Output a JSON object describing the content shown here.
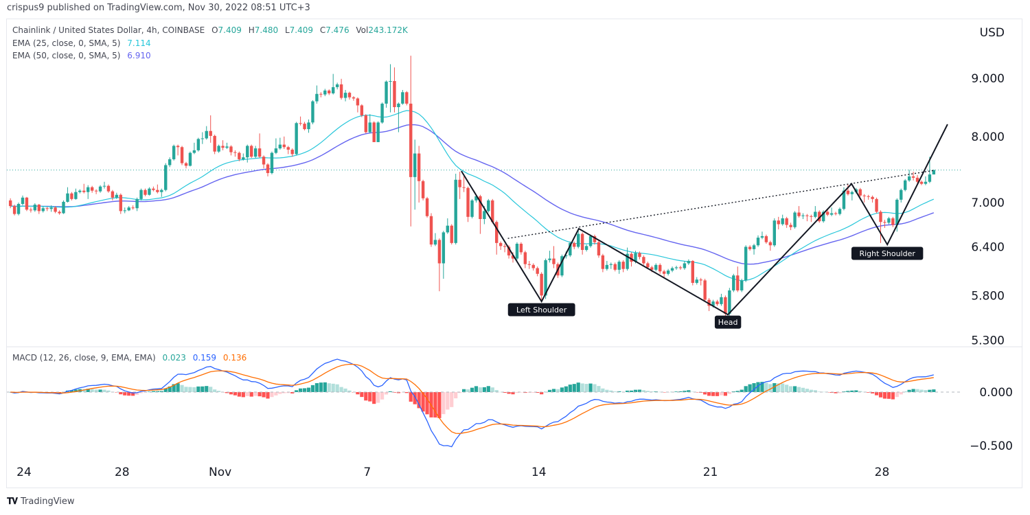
{
  "header": {
    "published": "crispus9 published on TradingView.com, Nov 30, 2022 08:51 UTC+3",
    "symbol": "Chainlink / United States Dollar, 4h, COINBASE",
    "o_label": "O",
    "o": "7.409",
    "h_label": "H",
    "h": "7.480",
    "l_label": "L",
    "l": "7.409",
    "c_label": "C",
    "c": "7.476",
    "vol_label": "Vol",
    "vol": "243.172K",
    "ema1_label": "EMA (25, close, 0, SMA, 5)",
    "ema1_value": "7.114",
    "ema2_label": "EMA (50, close, 0, SMA, 5)",
    "ema2_value": "6.910",
    "macd_label": "MACD (12, 26, close, 9, EMA, EMA)",
    "macd_hist": "0.023",
    "macd_line": "0.159",
    "macd_signal": "0.136"
  },
  "footer": {
    "logo_text": "TradingView",
    "logo_mark": "TV"
  },
  "colors": {
    "up": "#26a69a",
    "down": "#ef5350",
    "ema25": "#26c6da",
    "ema50": "#6464f0",
    "macd": "#2962ff",
    "signal": "#ff6d00",
    "hist_up_strong": "#26a69a",
    "hist_up_weak": "#b2dfdb",
    "hist_down_strong": "#ff5252",
    "hist_down_weak": "#ffcdd2",
    "last_price": "#26a69a"
  },
  "chart_data": {
    "type": "candlestick",
    "currency": "USD",
    "price_scale": "log",
    "price_ticks": [
      "9.000",
      "8.000",
      "7.000",
      "6.400",
      "5.800",
      "5.300"
    ],
    "macd_ticks": [
      "0.000",
      "-0.500"
    ],
    "time_ticks": [
      {
        "label": "24",
        "date": "2022-10-24"
      },
      {
        "label": "28",
        "date": "2022-10-28"
      },
      {
        "label": "Nov",
        "date": "2022-11-01"
      },
      {
        "label": "7",
        "date": "2022-11-07"
      },
      {
        "label": "14",
        "date": "2022-11-14"
      },
      {
        "label": "21",
        "date": "2022-11-21"
      },
      {
        "label": "28",
        "date": "2022-11-28"
      }
    ],
    "first_candle": "2022-10-23T12:00",
    "interval_hours": 4,
    "last_price": 7.476,
    "ohlc": [
      [
        7.03,
        7.06,
        6.92,
        6.95
      ],
      [
        6.95,
        6.97,
        6.82,
        6.84
      ],
      [
        6.84,
        7.0,
        6.82,
        6.98
      ],
      [
        6.98,
        7.1,
        6.96,
        7.07
      ],
      [
        7.07,
        7.08,
        6.88,
        6.9
      ],
      [
        6.9,
        6.93,
        6.86,
        6.89
      ],
      [
        6.89,
        6.99,
        6.87,
        6.97
      ],
      [
        6.97,
        6.98,
        6.84,
        6.88
      ],
      [
        6.88,
        6.95,
        6.86,
        6.92
      ],
      [
        6.92,
        6.94,
        6.88,
        6.91
      ],
      [
        6.91,
        6.96,
        6.87,
        6.93
      ],
      [
        6.93,
        6.95,
        6.85,
        6.87
      ],
      [
        6.87,
        6.89,
        6.83,
        6.85
      ],
      [
        6.85,
        7.03,
        6.84,
        7.01
      ],
      [
        7.01,
        7.22,
        7.0,
        7.13
      ],
      [
        7.13,
        7.15,
        7.03,
        7.05
      ],
      [
        7.05,
        7.2,
        7.04,
        7.15
      ],
      [
        7.15,
        7.19,
        7.13,
        7.17
      ],
      [
        7.17,
        7.27,
        7.13,
        7.15
      ],
      [
        7.15,
        7.25,
        7.05,
        7.22
      ],
      [
        7.22,
        7.24,
        7.14,
        7.17
      ],
      [
        7.17,
        7.19,
        7.12,
        7.16
      ],
      [
        7.16,
        7.25,
        7.14,
        7.23
      ],
      [
        7.23,
        7.3,
        7.2,
        7.24
      ],
      [
        7.24,
        7.26,
        7.14,
        7.16
      ],
      [
        7.16,
        7.18,
        7.03,
        7.07
      ],
      [
        7.07,
        7.14,
        7.05,
        7.11
      ],
      [
        7.11,
        7.13,
        6.84,
        6.88
      ],
      [
        6.88,
        6.93,
        6.85,
        6.89
      ],
      [
        6.89,
        6.95,
        6.88,
        6.93
      ],
      [
        6.93,
        6.96,
        6.9,
        6.92
      ],
      [
        6.92,
        7.07,
        6.88,
        7.05
      ],
      [
        7.05,
        7.2,
        7.03,
        7.18
      ],
      [
        7.18,
        7.2,
        7.09,
        7.11
      ],
      [
        7.11,
        7.22,
        7.1,
        7.2
      ],
      [
        7.2,
        7.23,
        7.16,
        7.18
      ],
      [
        7.18,
        7.26,
        7.13,
        7.15
      ],
      [
        7.15,
        7.2,
        7.08,
        7.18
      ],
      [
        7.18,
        7.58,
        7.16,
        7.55
      ],
      [
        7.55,
        7.67,
        7.52,
        7.64
      ],
      [
        7.64,
        7.87,
        7.62,
        7.85
      ],
      [
        7.85,
        7.87,
        7.7,
        7.83
      ],
      [
        7.83,
        7.85,
        7.55,
        7.58
      ],
      [
        7.58,
        7.6,
        7.5,
        7.54
      ],
      [
        7.54,
        7.76,
        7.53,
        7.74
      ],
      [
        7.74,
        7.9,
        7.72,
        7.78
      ],
      [
        7.78,
        7.98,
        7.76,
        7.96
      ],
      [
        7.96,
        8.07,
        7.88,
        7.97
      ],
      [
        7.97,
        8.17,
        7.95,
        8.09
      ],
      [
        8.09,
        8.35,
        7.9,
        8.01
      ],
      [
        8.01,
        8.03,
        7.72,
        7.76
      ],
      [
        7.76,
        7.87,
        7.74,
        7.85
      ],
      [
        7.85,
        7.94,
        7.78,
        7.82
      ],
      [
        7.82,
        7.9,
        7.8,
        7.84
      ],
      [
        7.84,
        7.86,
        7.7,
        7.75
      ],
      [
        7.75,
        7.78,
        7.68,
        7.74
      ],
      [
        7.74,
        7.76,
        7.61,
        7.64
      ],
      [
        7.64,
        7.73,
        7.62,
        7.67
      ],
      [
        7.67,
        7.87,
        7.59,
        7.85
      ],
      [
        7.85,
        7.87,
        7.66,
        7.68
      ],
      [
        7.68,
        7.85,
        7.66,
        7.81
      ],
      [
        7.81,
        8.05,
        7.66,
        7.68
      ],
      [
        7.68,
        7.7,
        7.5,
        7.56
      ],
      [
        7.56,
        7.58,
        7.38,
        7.43
      ],
      [
        7.43,
        7.76,
        7.41,
        7.74
      ],
      [
        7.74,
        7.97,
        7.72,
        7.81
      ],
      [
        7.81,
        7.98,
        7.79,
        7.87
      ],
      [
        7.87,
        8.0,
        7.8,
        7.83
      ],
      [
        7.83,
        7.85,
        7.72,
        7.79
      ],
      [
        7.79,
        7.81,
        7.68,
        7.72
      ],
      [
        7.72,
        8.24,
        7.7,
        8.22
      ],
      [
        8.22,
        8.33,
        8.18,
        8.21
      ],
      [
        8.21,
        8.24,
        8.1,
        8.12
      ],
      [
        8.12,
        8.28,
        8.06,
        8.23
      ],
      [
        8.23,
        8.61,
        8.2,
        8.59
      ],
      [
        8.59,
        8.87,
        8.55,
        8.72
      ],
      [
        8.72,
        8.75,
        8.66,
        8.71
      ],
      [
        8.71,
        8.81,
        8.68,
        8.78
      ],
      [
        8.78,
        8.8,
        8.7,
        8.73
      ],
      [
        8.73,
        9.08,
        8.71,
        8.84
      ],
      [
        8.84,
        8.92,
        8.8,
        8.89
      ],
      [
        8.89,
        8.99,
        8.62,
        8.65
      ],
      [
        8.65,
        8.79,
        8.59,
        8.74
      ],
      [
        8.74,
        8.76,
        8.62,
        8.66
      ],
      [
        8.66,
        8.68,
        8.6,
        8.64
      ],
      [
        8.64,
        8.66,
        8.4,
        8.52
      ],
      [
        8.52,
        8.54,
        8.32,
        8.35
      ],
      [
        8.35,
        8.37,
        8.05,
        8.07
      ],
      [
        8.07,
        8.37,
        8.05,
        8.23
      ],
      [
        8.23,
        8.25,
        7.91,
        7.91
      ],
      [
        7.91,
        8.25,
        7.91,
        8.23
      ],
      [
        8.23,
        8.57,
        8.21,
        8.55
      ],
      [
        8.55,
        8.96,
        8.48,
        8.94
      ],
      [
        8.94,
        9.26,
        8.4,
        8.95
      ],
      [
        8.95,
        9.2,
        8.4,
        8.49
      ],
      [
        8.49,
        8.57,
        8.07,
        8.55
      ],
      [
        8.55,
        8.79,
        8.53,
        8.75
      ],
      [
        8.75,
        8.77,
        8.52,
        8.55
      ],
      [
        8.55,
        9.42,
        6.67,
        7.37
      ],
      [
        7.37,
        7.95,
        6.9,
        7.73
      ],
      [
        7.73,
        7.85,
        7.0,
        7.31
      ],
      [
        7.31,
        7.33,
        7.03,
        7.06
      ],
      [
        7.06,
        7.08,
        6.79,
        6.81
      ],
      [
        6.81,
        6.85,
        6.4,
        6.43
      ],
      [
        6.43,
        6.58,
        6.41,
        6.49
      ],
      [
        6.49,
        6.51,
        5.85,
        6.19
      ],
      [
        6.19,
        6.61,
        6.0,
        6.59
      ],
      [
        6.59,
        6.78,
        6.57,
        6.68
      ],
      [
        6.68,
        6.7,
        6.43,
        6.45
      ],
      [
        6.45,
        7.42,
        6.43,
        7.33
      ],
      [
        7.33,
        7.45,
        7.05,
        7.22
      ],
      [
        7.22,
        7.38,
        7.15,
        7.21
      ],
      [
        7.21,
        7.23,
        6.73,
        6.8
      ],
      [
        6.8,
        7.05,
        6.78,
        7.03
      ],
      [
        7.03,
        7.11,
        7.0,
        7.09
      ],
      [
        7.09,
        7.11,
        6.57,
        6.77
      ],
      [
        6.77,
        6.95,
        6.7,
        6.88
      ],
      [
        6.88,
        7.05,
        6.86,
        7.03
      ],
      [
        7.03,
        7.05,
        6.71,
        6.73
      ],
      [
        6.73,
        6.75,
        6.3,
        6.45
      ],
      [
        6.45,
        6.47,
        6.36,
        6.41
      ],
      [
        6.41,
        6.44,
        6.33,
        6.4
      ],
      [
        6.4,
        6.42,
        6.25,
        6.29
      ],
      [
        6.29,
        6.33,
        6.2,
        6.25
      ],
      [
        6.25,
        6.46,
        6.23,
        6.44
      ],
      [
        6.44,
        6.46,
        6.3,
        6.33
      ],
      [
        6.33,
        6.35,
        6.13,
        6.18
      ],
      [
        6.18,
        6.22,
        6.12,
        6.17
      ],
      [
        6.17,
        6.19,
        6.1,
        6.13
      ],
      [
        6.13,
        6.15,
        6.03,
        6.06
      ],
      [
        6.06,
        6.08,
        5.74,
        5.8
      ],
      [
        5.8,
        6.25,
        5.76,
        6.23
      ],
      [
        6.23,
        6.35,
        6.2,
        6.25
      ],
      [
        6.25,
        6.41,
        6.13,
        6.18
      ],
      [
        6.18,
        6.2,
        6.01,
        6.04
      ],
      [
        6.04,
        6.3,
        6.02,
        6.28
      ],
      [
        6.28,
        6.34,
        6.25,
        6.29
      ],
      [
        6.29,
        6.47,
        6.27,
        6.45
      ],
      [
        6.45,
        6.47,
        6.37,
        6.4
      ],
      [
        6.4,
        6.62,
        6.38,
        6.57
      ],
      [
        6.57,
        6.59,
        6.3,
        6.36
      ],
      [
        6.36,
        6.43,
        6.34,
        6.41
      ],
      [
        6.41,
        6.56,
        6.39,
        6.54
      ],
      [
        6.54,
        6.56,
        6.43,
        6.46
      ],
      [
        6.46,
        6.48,
        6.26,
        6.29
      ],
      [
        6.29,
        6.31,
        6.08,
        6.12
      ],
      [
        6.12,
        6.22,
        6.1,
        6.17
      ],
      [
        6.17,
        6.2,
        6.12,
        6.18
      ],
      [
        6.18,
        6.2,
        6.09,
        6.11
      ],
      [
        6.11,
        6.23,
        6.06,
        6.21
      ],
      [
        6.21,
        6.23,
        6.08,
        6.12
      ],
      [
        6.12,
        6.39,
        6.1,
        6.31
      ],
      [
        6.31,
        6.33,
        6.15,
        6.21
      ],
      [
        6.21,
        6.35,
        6.19,
        6.32
      ],
      [
        6.32,
        6.34,
        6.24,
        6.27
      ],
      [
        6.27,
        6.29,
        6.17,
        6.19
      ],
      [
        6.19,
        6.21,
        6.12,
        6.14
      ],
      [
        6.14,
        6.16,
        6.08,
        6.11
      ],
      [
        6.11,
        6.19,
        6.09,
        6.17
      ],
      [
        6.17,
        6.19,
        6.06,
        6.09
      ],
      [
        6.09,
        6.11,
        6.02,
        6.06
      ],
      [
        6.06,
        6.12,
        6.04,
        6.1
      ],
      [
        6.1,
        6.15,
        6.08,
        6.13
      ],
      [
        6.13,
        6.16,
        6.11,
        6.14
      ],
      [
        6.14,
        6.16,
        6.11,
        6.13
      ],
      [
        6.13,
        6.22,
        6.11,
        6.19
      ],
      [
        6.19,
        6.24,
        6.17,
        6.22
      ],
      [
        6.22,
        6.23,
        5.92,
        5.95
      ],
      [
        5.95,
        6.02,
        5.93,
        5.99
      ],
      [
        5.99,
        6.01,
        5.92,
        5.98
      ],
      [
        5.98,
        6.0,
        5.73,
        5.75
      ],
      [
        5.75,
        5.77,
        5.62,
        5.68
      ],
      [
        5.68,
        5.75,
        5.66,
        5.73
      ],
      [
        5.73,
        5.75,
        5.68,
        5.7
      ],
      [
        5.7,
        5.82,
        5.68,
        5.78
      ],
      [
        5.78,
        5.8,
        5.55,
        5.59
      ],
      [
        5.59,
        5.89,
        5.57,
        5.86
      ],
      [
        5.86,
        6.06,
        5.84,
        6.04
      ],
      [
        6.04,
        6.15,
        5.84,
        5.86
      ],
      [
        5.86,
        6.0,
        5.84,
        5.98
      ],
      [
        5.98,
        6.42,
        5.96,
        6.4
      ],
      [
        6.4,
        6.42,
        6.35,
        6.37
      ],
      [
        6.37,
        6.44,
        6.3,
        6.42
      ],
      [
        6.42,
        6.55,
        6.4,
        6.52
      ],
      [
        6.52,
        6.6,
        6.5,
        6.54
      ],
      [
        6.54,
        6.56,
        6.44,
        6.46
      ],
      [
        6.46,
        6.48,
        6.35,
        6.42
      ],
      [
        6.42,
        6.78,
        6.4,
        6.75
      ],
      [
        6.75,
        6.8,
        6.63,
        6.7
      ],
      [
        6.7,
        6.83,
        6.68,
        6.78
      ],
      [
        6.78,
        6.8,
        6.65,
        6.69
      ],
      [
        6.69,
        6.72,
        6.62,
        6.66
      ],
      [
        6.66,
        6.88,
        6.64,
        6.86
      ],
      [
        6.86,
        6.95,
        6.79,
        6.81
      ],
      [
        6.81,
        6.85,
        6.77,
        6.82
      ],
      [
        6.82,
        6.84,
        6.74,
        6.81
      ],
      [
        6.81,
        6.83,
        6.73,
        6.8
      ],
      [
        6.8,
        6.95,
        6.78,
        6.87
      ],
      [
        6.87,
        6.89,
        6.72,
        6.74
      ],
      [
        6.74,
        6.89,
        6.72,
        6.87
      ],
      [
        6.87,
        6.9,
        6.81,
        6.83
      ],
      [
        6.83,
        6.93,
        6.81,
        6.85
      ],
      [
        6.85,
        6.87,
        6.82,
        6.84
      ],
      [
        6.84,
        6.93,
        6.82,
        6.91
      ],
      [
        6.91,
        7.22,
        6.89,
        7.17
      ],
      [
        7.17,
        7.26,
        7.1,
        7.12
      ],
      [
        7.12,
        7.17,
        7.03,
        7.15
      ],
      [
        7.15,
        7.21,
        7.13,
        7.19
      ],
      [
        7.19,
        7.21,
        7.08,
        7.1
      ],
      [
        7.1,
        7.12,
        7.0,
        7.09
      ],
      [
        7.09,
        7.11,
        7.04,
        7.08
      ],
      [
        7.08,
        7.1,
        7.0,
        7.05
      ],
      [
        7.05,
        7.07,
        6.85,
        6.87
      ],
      [
        6.87,
        6.89,
        6.45,
        6.73
      ],
      [
        6.73,
        6.76,
        6.65,
        6.72
      ],
      [
        6.72,
        6.8,
        6.7,
        6.78
      ],
      [
        6.78,
        6.8,
        6.66,
        6.69
      ],
      [
        6.69,
        7.06,
        6.6,
        7.04
      ],
      [
        7.04,
        7.2,
        7.0,
        7.18
      ],
      [
        7.18,
        7.34,
        7.16,
        7.32
      ],
      [
        7.32,
        7.48,
        7.3,
        7.38
      ],
      [
        7.38,
        7.45,
        7.32,
        7.36
      ],
      [
        7.36,
        7.4,
        7.27,
        7.3
      ],
      [
        7.3,
        7.32,
        7.25,
        7.27
      ],
      [
        7.27,
        7.38,
        7.25,
        7.3
      ],
      [
        7.3,
        7.68,
        7.28,
        7.409
      ],
      [
        7.409,
        7.48,
        7.409,
        7.476
      ]
    ],
    "pattern_line": [
      {
        "date": "2022-11-10T21:30",
        "price": 7.46
      },
      {
        "date": "2022-11-14T04:00",
        "price": 5.73
      },
      {
        "date": "2022-11-15T16:30",
        "price": 6.64
      },
      {
        "date": "2022-11-21T18:30",
        "price": 5.58
      },
      {
        "date": "2022-11-26T19:30",
        "price": 7.27
      },
      {
        "date": "2022-11-28T06:30",
        "price": 6.43
      },
      {
        "date": "2022-11-30T17:30",
        "price": 8.2
      }
    ],
    "neckline": [
      {
        "date": "2022-11-12T19:00",
        "price": 6.51
      },
      {
        "date": "2022-11-30T04:00",
        "price": 7.47
      }
    ],
    "annotations": [
      {
        "text": "Left Shoulder",
        "date": "2022-11-14T04:00",
        "price": 5.64
      },
      {
        "text": "Head",
        "date": "2022-11-21T18:30",
        "price": 5.5
      },
      {
        "text": "Right Shoulder",
        "date": "2022-11-28T06:30",
        "price": 6.32
      }
    ]
  }
}
